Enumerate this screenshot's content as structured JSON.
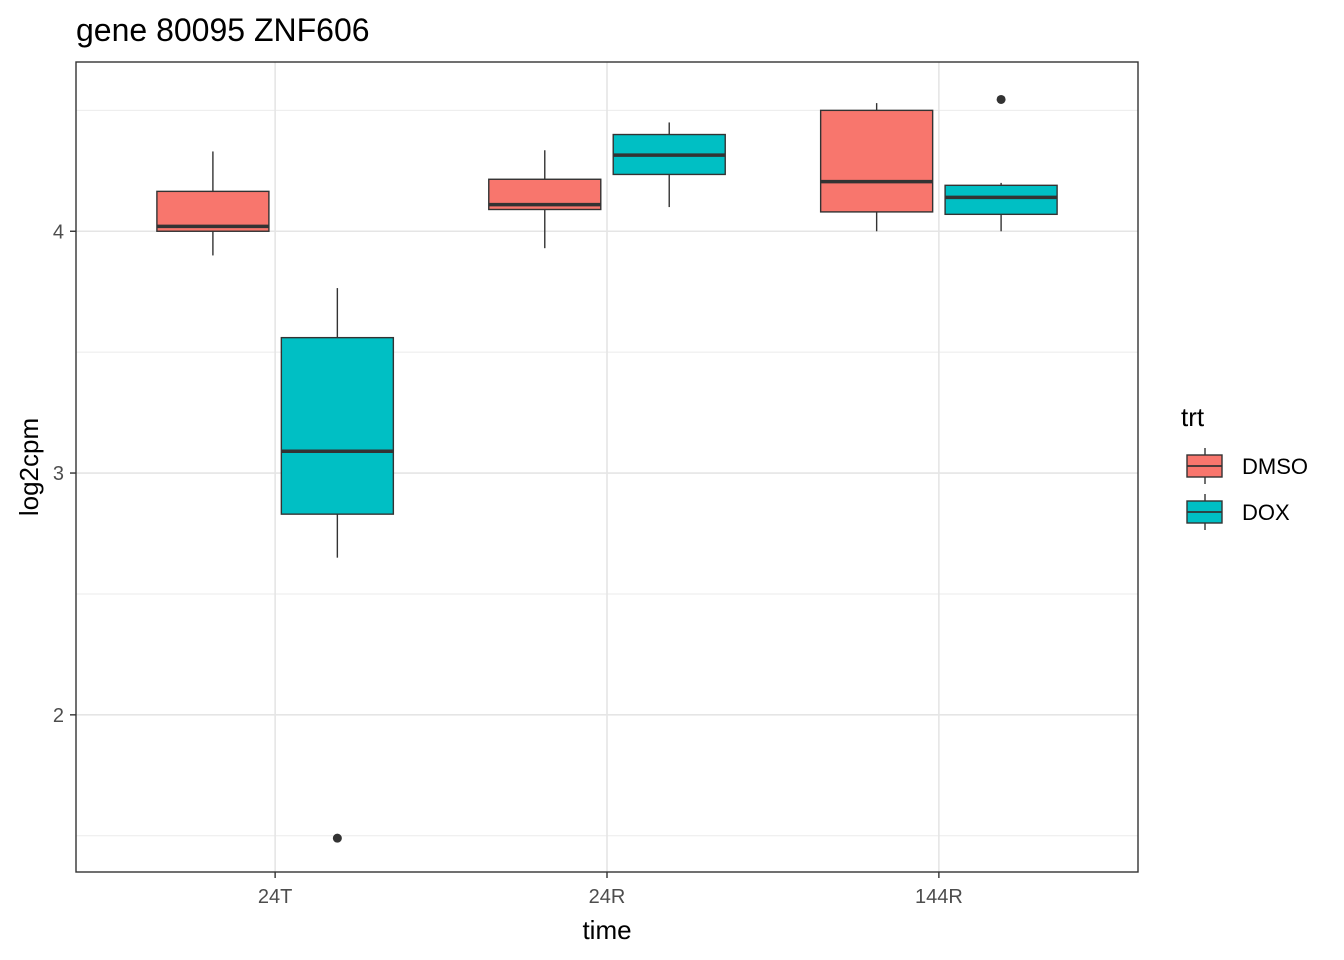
{
  "chart_data": {
    "type": "boxplot",
    "title": "gene 80095 ZNF606",
    "xlabel": "time",
    "ylabel": "log2cpm",
    "categories": [
      "24T",
      "24R",
      "144R"
    ],
    "yticks": [
      2,
      3,
      4
    ],
    "ylim": [
      1.35,
      4.7
    ],
    "grid": true,
    "legend": {
      "title": "trt",
      "position": "right"
    },
    "series": [
      {
        "name": "DMSO",
        "color": "#F8766D",
        "boxes": [
          {
            "category": "24T",
            "min": 3.9,
            "q1": 4.0,
            "median": 4.02,
            "q3": 4.165,
            "max": 4.33,
            "outliers": []
          },
          {
            "category": "24R",
            "min": 3.93,
            "q1": 4.09,
            "median": 4.11,
            "q3": 4.215,
            "max": 4.335,
            "outliers": []
          },
          {
            "category": "144R",
            "min": 4.0,
            "q1": 4.08,
            "median": 4.205,
            "q3": 4.5,
            "max": 4.53,
            "outliers": []
          }
        ]
      },
      {
        "name": "DOX",
        "color": "#00BFC4",
        "boxes": [
          {
            "category": "24T",
            "min": 2.65,
            "q1": 2.83,
            "median": 3.09,
            "q3": 3.56,
            "max": 3.765,
            "outliers": [
              1.49
            ]
          },
          {
            "category": "24R",
            "min": 4.1,
            "q1": 4.235,
            "median": 4.315,
            "q3": 4.4,
            "max": 4.45,
            "outliers": []
          },
          {
            "category": "144R",
            "min": 4.0,
            "q1": 4.07,
            "median": 4.14,
            "q3": 4.19,
            "max": 4.2,
            "outliers": [
              4.545
            ]
          }
        ]
      }
    ]
  }
}
